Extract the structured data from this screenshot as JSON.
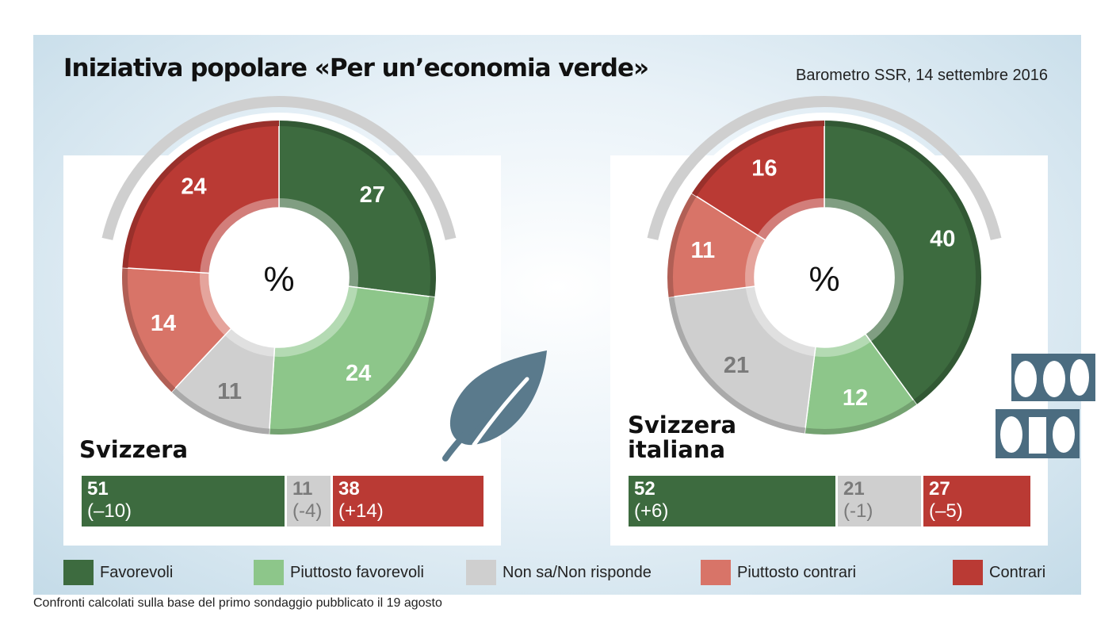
{
  "header": {
    "title": "Iniziativa popolare «Per un’economia verde»",
    "source": "Barometro SSR, 14 settembre 2016"
  },
  "footnote": "Confronti calcolati sulla base del primo sondaggio pubblicato il 19 agosto",
  "colors": {
    "favorevoli": "#3d6b3f",
    "piuttosto_favorevoli": "#8dc68a",
    "non_sa": "#cfcfcf",
    "piuttosto_contrari": "#d87468",
    "contrari": "#ba3a34",
    "leaf": "#5a7a8c",
    "logo": "#4b6c80"
  },
  "chart_data": [
    {
      "type": "pie",
      "region": "Svizzera",
      "center_label": "%",
      "categories": [
        "Favorevoli",
        "Piuttosto favorevoli",
        "Non sa/Non risponde",
        "Piuttosto contrari",
        "Contrari"
      ],
      "values": [
        27,
        24,
        11,
        14,
        24
      ],
      "summary": [
        {
          "group": "favorevoli",
          "value": "51",
          "delta": "(–10)",
          "share": 51
        },
        {
          "group": "non_sa",
          "value": "11",
          "delta": "(-4)",
          "share": 11
        },
        {
          "group": "contrari",
          "value": "38",
          "delta": "(+14)",
          "share": 38
        }
      ]
    },
    {
      "type": "pie",
      "region": "Svizzera italiana",
      "center_label": "%",
      "categories": [
        "Favorevoli",
        "Piuttosto favorevoli",
        "Non sa/Non risponde",
        "Piuttosto contrari",
        "Contrari"
      ],
      "values": [
        40,
        12,
        21,
        11,
        16
      ],
      "summary": [
        {
          "group": "favorevoli",
          "value": "52",
          "delta": "(+6)",
          "share": 52
        },
        {
          "group": "non_sa",
          "value": "21",
          "delta": "(-1)",
          "share": 21
        },
        {
          "group": "contrari",
          "value": "27",
          "delta": "(–5)",
          "share": 27
        }
      ]
    }
  ],
  "legend": [
    {
      "label": "Favorevoli",
      "color": "#3d6b3f"
    },
    {
      "label": "Piuttosto favorevoli",
      "color": "#8dc68a"
    },
    {
      "label": "Non sa/Non risponde",
      "color": "#cfcfcf"
    },
    {
      "label": "Piuttosto contrari",
      "color": "#d87468"
    },
    {
      "label": "Contrari",
      "color": "#ba3a34"
    }
  ]
}
